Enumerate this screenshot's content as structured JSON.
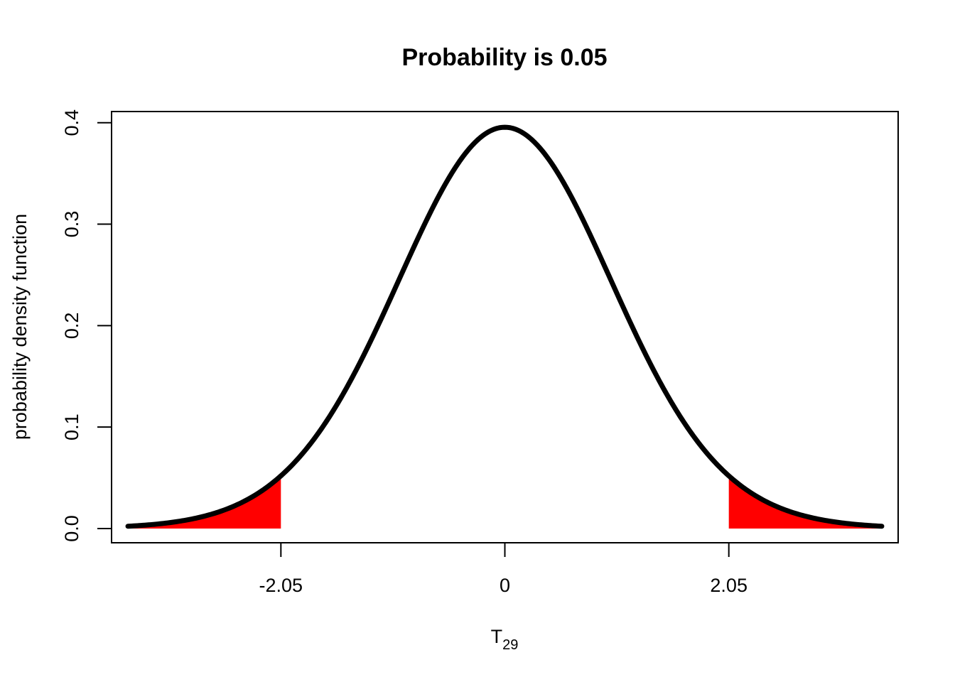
{
  "chart_data": {
    "type": "area",
    "title": "Probability is 0.05",
    "xlabel": {
      "main": "T",
      "subscript": "29"
    },
    "ylabel": "probability  density  function",
    "distribution": "Student t",
    "degrees_of_freedom": 29,
    "xlim": [
      -3.6,
      3.6
    ],
    "ylim": [
      -0.014,
      0.411
    ],
    "x_ticks": [
      {
        "value": -2.05,
        "label": "-2.05"
      },
      {
        "value": 0,
        "label": "0"
      },
      {
        "value": 2.05,
        "label": "2.05"
      }
    ],
    "y_ticks": [
      {
        "value": 0.0,
        "label": "0.0"
      },
      {
        "value": 0.1,
        "label": "0.1"
      },
      {
        "value": 0.2,
        "label": "0.2"
      },
      {
        "value": 0.3,
        "label": "0.3"
      },
      {
        "value": 0.4,
        "label": "0.4"
      }
    ],
    "curve_range": [
      -3.45,
      3.45
    ],
    "shaded_regions": [
      {
        "from": -3.45,
        "to": -2.05,
        "color": "#ff0000"
      },
      {
        "from": 2.05,
        "to": 3.45,
        "color": "#ff0000"
      }
    ],
    "curve_color": "#000000",
    "grid": false
  }
}
